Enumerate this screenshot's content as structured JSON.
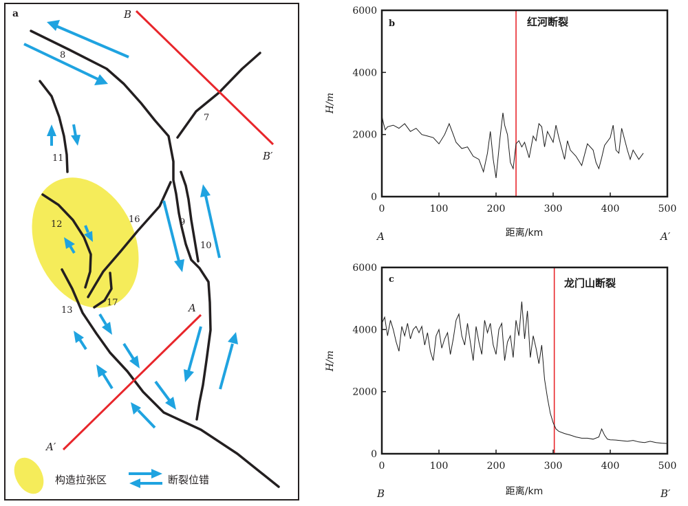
{
  "panel_a": {
    "label": "a",
    "fault_numbers": {
      "f7": "7",
      "f8": "8",
      "f9": "9",
      "f10": "10",
      "f11": "11",
      "f12": "12",
      "f13": "13",
      "f16": "16",
      "f17": "17"
    },
    "profile_lines": {
      "b_start": "B",
      "b_end": "B′",
      "a_start": "A",
      "a_end": "A′"
    },
    "legend": {
      "extension_zone": "构造拉张区",
      "fault_offset": "断裂位错"
    },
    "colors": {
      "fault": "#231f20",
      "offset_arrow": "#1fa3e0",
      "profile_line": "#e8262b",
      "extension_fill": "#f5ec5a"
    }
  },
  "chart_data": [
    {
      "type": "line",
      "panel_label": "b",
      "annotation": "红河断裂",
      "xlabel": "距离/km",
      "ylabel": "H/m",
      "x_ticks": [
        "0",
        "100",
        "200",
        "300",
        "400",
        "500"
      ],
      "y_ticks": [
        "0",
        "2000",
        "4000",
        "6000"
      ],
      "xlim": [
        0,
        500
      ],
      "ylim": [
        0,
        6000
      ],
      "end_labels": {
        "start": "A",
        "end": "A′"
      },
      "fault_x": 235,
      "series": [
        {
          "color": "#1a1a1a",
          "x": [
            0,
            3,
            6,
            10,
            20,
            30,
            40,
            50,
            60,
            70,
            80,
            90,
            100,
            110,
            118,
            125,
            130,
            140,
            150,
            160,
            170,
            178,
            185,
            190,
            195,
            200,
            207,
            212,
            215,
            220,
            225,
            230,
            235,
            240,
            245,
            250,
            258,
            265,
            270,
            275,
            280,
            285,
            290,
            300,
            305,
            310,
            320,
            325,
            330,
            340,
            350,
            360,
            370,
            375,
            380,
            385,
            390,
            400,
            405,
            410,
            415,
            420,
            430,
            435,
            440,
            450,
            458
          ],
          "y": [
            2600,
            2350,
            2150,
            2250,
            2300,
            2200,
            2350,
            2100,
            2200,
            2000,
            1950,
            1900,
            1700,
            2000,
            2350,
            2000,
            1750,
            1550,
            1600,
            1300,
            1200,
            800,
            1400,
            2100,
            1200,
            600,
            1900,
            2700,
            2300,
            2000,
            1100,
            900,
            1700,
            1800,
            1600,
            1750,
            1250,
            1950,
            1800,
            2350,
            2250,
            1600,
            2100,
            1750,
            2300,
            1900,
            1200,
            1800,
            1500,
            1300,
            1000,
            1700,
            1500,
            1100,
            900,
            1250,
            1650,
            1900,
            2300,
            1500,
            1400,
            2200,
            1500,
            1200,
            1500,
            1200,
            1400
          ]
        }
      ]
    },
    {
      "type": "line",
      "panel_label": "c",
      "annotation": "龙门山断裂",
      "xlabel": "距离/km",
      "ylabel": "H/m",
      "x_ticks": [
        "0",
        "100",
        "200",
        "300",
        "400",
        "500"
      ],
      "y_ticks": [
        "0",
        "2000",
        "4000",
        "6000"
      ],
      "xlim": [
        0,
        500
      ],
      "ylim": [
        0,
        6000
      ],
      "end_labels": {
        "start": "B",
        "end": "B′"
      },
      "fault_x": 302,
      "series": [
        {
          "color": "#1a1a1a",
          "x": [
            0,
            5,
            10,
            15,
            20,
            25,
            30,
            35,
            40,
            45,
            50,
            55,
            60,
            65,
            70,
            75,
            80,
            85,
            90,
            95,
            100,
            105,
            110,
            115,
            120,
            125,
            130,
            135,
            140,
            145,
            150,
            155,
            160,
            165,
            170,
            175,
            180,
            185,
            190,
            195,
            200,
            205,
            210,
            215,
            220,
            225,
            230,
            235,
            240,
            245,
            250,
            255,
            260,
            265,
            270,
            275,
            280,
            285,
            290,
            295,
            300,
            305,
            310,
            320,
            330,
            340,
            350,
            360,
            370,
            380,
            385,
            390,
            395,
            400,
            410,
            420,
            430,
            440,
            450,
            460,
            470,
            480,
            490,
            500
          ],
          "y": [
            4200,
            4400,
            3800,
            4300,
            4000,
            3600,
            3300,
            4100,
            3800,
            4200,
            3700,
            4000,
            4100,
            3900,
            4100,
            3500,
            3900,
            3300,
            3000,
            3800,
            4000,
            3400,
            3700,
            3900,
            3200,
            3700,
            4300,
            4500,
            3800,
            3500,
            4200,
            3600,
            3000,
            4100,
            3600,
            3200,
            4300,
            3900,
            4200,
            3500,
            3200,
            4000,
            4200,
            3000,
            3600,
            3800,
            3100,
            4300,
            3800,
            4900,
            3700,
            4600,
            3100,
            3800,
            3400,
            2900,
            3500,
            2400,
            1800,
            1300,
            1000,
            800,
            720,
            650,
            600,
            540,
            500,
            500,
            470,
            540,
            800,
            600,
            470,
            450,
            440,
            420,
            400,
            430,
            380,
            360,
            400,
            360,
            340,
            330
          ]
        }
      ]
    }
  ]
}
